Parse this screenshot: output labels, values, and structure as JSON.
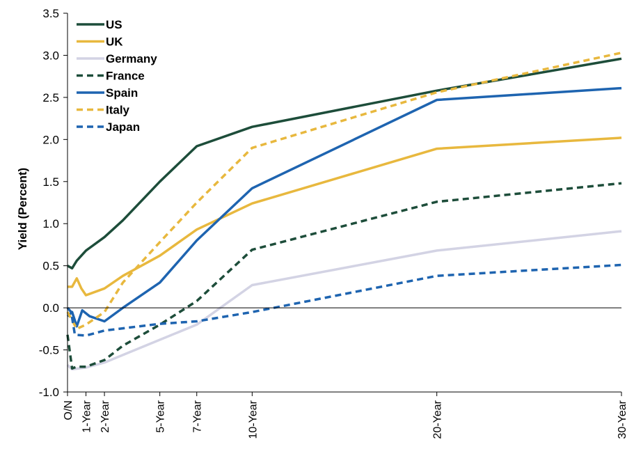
{
  "chart_data": {
    "type": "line",
    "title": "",
    "xlabel": "",
    "ylabel": "Yield (Percent)",
    "ylim": [
      -1.0,
      3.5
    ],
    "yticks": [
      "3.5",
      "3.0",
      "2.5",
      "2.0",
      "1.5",
      "1.0",
      "0.5",
      "0.0",
      "-0.5",
      "-1.0"
    ],
    "xlim": [
      0,
      30
    ],
    "xticks": [
      {
        "label": "O/N",
        "t": 0
      },
      {
        "label": "1-Year",
        "t": 1
      },
      {
        "label": "2-Year",
        "t": 2
      },
      {
        "label": "5-Year",
        "t": 5
      },
      {
        "label": "7-Year",
        "t": 7
      },
      {
        "label": "10-Year",
        "t": 10
      },
      {
        "label": "20-Year",
        "t": 20
      },
      {
        "label": "30-Year",
        "t": 30
      }
    ],
    "legend_position": "top-left",
    "series": [
      {
        "name": "US",
        "color": "#1d4d3a",
        "dash": "solid",
        "points": [
          [
            0,
            0.5
          ],
          [
            0.25,
            0.47
          ],
          [
            0.5,
            0.56
          ],
          [
            1,
            0.68
          ],
          [
            2,
            0.84
          ],
          [
            3,
            1.04
          ],
          [
            5,
            1.5
          ],
          [
            7,
            1.92
          ],
          [
            10,
            2.15
          ],
          [
            20,
            2.58
          ],
          [
            30,
            2.96
          ]
        ]
      },
      {
        "name": "UK",
        "color": "#e8b83e",
        "dash": "solid",
        "points": [
          [
            0,
            0.25
          ],
          [
            0.25,
            0.25
          ],
          [
            0.5,
            0.35
          ],
          [
            0.75,
            0.23
          ],
          [
            1,
            0.15
          ],
          [
            2,
            0.23
          ],
          [
            3,
            0.38
          ],
          [
            5,
            0.62
          ],
          [
            7,
            0.93
          ],
          [
            10,
            1.24
          ],
          [
            20,
            1.89
          ],
          [
            30,
            2.02
          ]
        ]
      },
      {
        "name": "Germany",
        "color": "#d3d3e4",
        "dash": "solid",
        "points": [
          [
            0,
            -0.68
          ],
          [
            0.25,
            -0.73
          ],
          [
            1,
            -0.71
          ],
          [
            2,
            -0.65
          ],
          [
            5,
            -0.38
          ],
          [
            7,
            -0.2
          ],
          [
            10,
            0.27
          ],
          [
            20,
            0.68
          ],
          [
            30,
            0.91
          ]
        ]
      },
      {
        "name": "France",
        "color": "#1d4d3a",
        "dash": "dashed",
        "points": [
          [
            0,
            -0.32
          ],
          [
            0.25,
            -0.72
          ],
          [
            0.5,
            -0.7
          ],
          [
            1,
            -0.7
          ],
          [
            2,
            -0.62
          ],
          [
            3,
            -0.45
          ],
          [
            5,
            -0.2
          ],
          [
            7,
            0.08
          ],
          [
            10,
            0.69
          ],
          [
            20,
            1.26
          ],
          [
            30,
            1.48
          ]
        ]
      },
      {
        "name": "Spain",
        "color": "#1e64b0",
        "dash": "solid",
        "points": [
          [
            0,
            -0.1
          ],
          [
            0.25,
            -0.05
          ],
          [
            0.5,
            -0.22
          ],
          [
            0.8,
            -0.03
          ],
          [
            1.2,
            -0.1
          ],
          [
            2,
            -0.16
          ],
          [
            3,
            0.0
          ],
          [
            5,
            0.3
          ],
          [
            7,
            0.8
          ],
          [
            10,
            1.42
          ],
          [
            20,
            2.47
          ],
          [
            30,
            2.61
          ]
        ]
      },
      {
        "name": "Italy",
        "color": "#e8b83e",
        "dash": "dashed",
        "points": [
          [
            0,
            -0.05
          ],
          [
            0.5,
            -0.25
          ],
          [
            1,
            -0.2
          ],
          [
            2,
            -0.05
          ],
          [
            3,
            0.3
          ],
          [
            5,
            0.78
          ],
          [
            7,
            1.25
          ],
          [
            10,
            1.9
          ],
          [
            20,
            2.56
          ],
          [
            30,
            3.03
          ]
        ]
      },
      {
        "name": "Japan",
        "color": "#1e64b0",
        "dash": "dashed",
        "points": [
          [
            0,
            0.0
          ],
          [
            0.2,
            -0.05
          ],
          [
            0.4,
            -0.32
          ],
          [
            1,
            -0.33
          ],
          [
            2,
            -0.27
          ],
          [
            5,
            -0.19
          ],
          [
            7,
            -0.16
          ],
          [
            10,
            -0.05
          ],
          [
            20,
            0.38
          ],
          [
            30,
            0.51
          ]
        ]
      }
    ]
  }
}
